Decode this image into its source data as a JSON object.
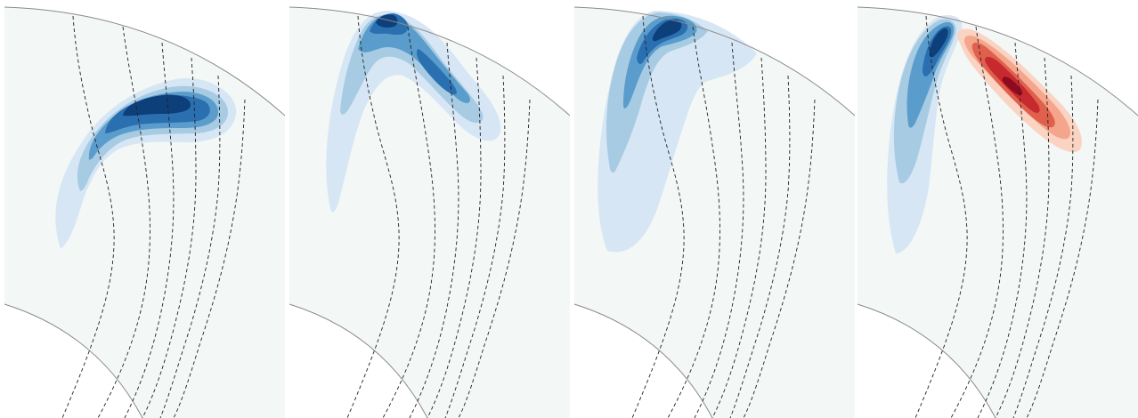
{
  "figure": {
    "panel_count": 4,
    "background_color": "#f3f7f6",
    "boundary_color": "#8a8a8a",
    "field_line_color": "#222222",
    "field_line_style": "dashed"
  },
  "panels": [
    {
      "id": "panel-1",
      "palette": "blues",
      "colors": [
        "#d6e6f4",
        "#a6cbe3",
        "#5a9ccb",
        "#2a6fb0",
        "#0d3f7a"
      ],
      "feature": "arched-lobe"
    },
    {
      "id": "panel-2",
      "palette": "blues",
      "colors": [
        "#d6e6f4",
        "#a6cbe3",
        "#5a9ccb",
        "#2a6fb0",
        "#0d3f7a"
      ],
      "feature": "inverted-v"
    },
    {
      "id": "panel-3",
      "palette": "blues",
      "colors": [
        "#d6e6f4",
        "#a6cbe3",
        "#5a9ccb",
        "#2a6fb0",
        "#0d3f7a"
      ],
      "feature": "surface-lobe"
    },
    {
      "id": "panel-4",
      "palette": "blues-and-reds",
      "colors": [
        "#d6e6f4",
        "#a6cbe3",
        "#5a9ccb",
        "#2a6fb0",
        "#0d3f7a"
      ],
      "red_colors": [
        "#fbd3c3",
        "#f4a58c",
        "#e0604e",
        "#c62a2e",
        "#8e0a1f"
      ],
      "feature": "surface-lobe-with-red-band"
    }
  ]
}
